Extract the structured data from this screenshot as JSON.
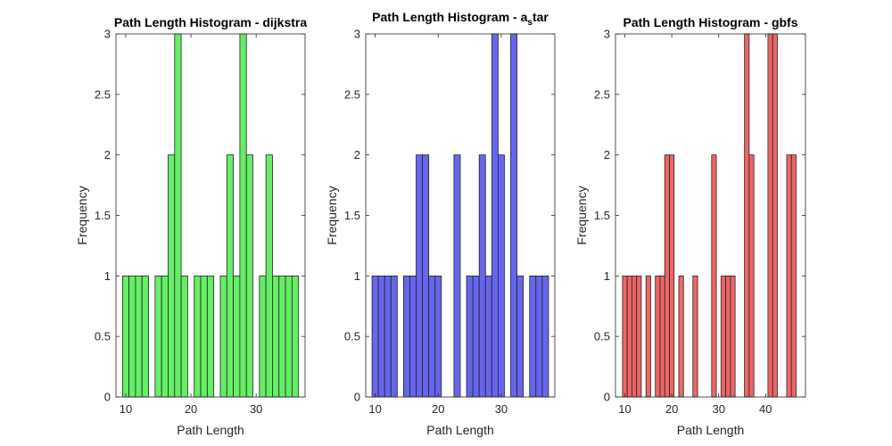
{
  "figure": {
    "background": "#ffffff"
  },
  "chart_data": [
    {
      "type": "bar",
      "title": "Path Length Histogram - dijkstra",
      "title_parts": [],
      "xlabel": "Path Length",
      "ylabel": "Frequency",
      "xlim": [
        8.5,
        37.5
      ],
      "ylim": [
        0,
        3
      ],
      "xticks": [
        10,
        20,
        30
      ],
      "yticks": [
        0,
        0.5,
        1,
        1.5,
        2,
        2.5,
        3
      ],
      "ytick_labels": [
        "0",
        "0.5",
        "1",
        "1.5",
        "2",
        "2.5",
        "3"
      ],
      "bin_width": 1,
      "color": "#66ee66",
      "bins": [
        {
          "x": 10,
          "value": 1
        },
        {
          "x": 11,
          "value": 1
        },
        {
          "x": 12,
          "value": 1
        },
        {
          "x": 13,
          "value": 1
        },
        {
          "x": 15,
          "value": 1
        },
        {
          "x": 16,
          "value": 1
        },
        {
          "x": 17,
          "value": 2
        },
        {
          "x": 18,
          "value": 3
        },
        {
          "x": 19,
          "value": 1
        },
        {
          "x": 21,
          "value": 1
        },
        {
          "x": 22,
          "value": 1
        },
        {
          "x": 23,
          "value": 1
        },
        {
          "x": 25,
          "value": 1
        },
        {
          "x": 26,
          "value": 2
        },
        {
          "x": 27,
          "value": 1
        },
        {
          "x": 28,
          "value": 3
        },
        {
          "x": 29,
          "value": 2
        },
        {
          "x": 31,
          "value": 1
        },
        {
          "x": 32,
          "value": 2
        },
        {
          "x": 33,
          "value": 1
        },
        {
          "x": 34,
          "value": 1
        },
        {
          "x": 35,
          "value": 1
        },
        {
          "x": 36,
          "value": 1
        }
      ]
    },
    {
      "type": "bar",
      "title": "",
      "title_parts": [
        "Path Length Histogram - a",
        "s",
        "tar"
      ],
      "xlabel": "Path Length",
      "ylabel": "Frequency",
      "xlim": [
        8.5,
        38.5
      ],
      "ylim": [
        0,
        3
      ],
      "xticks": [
        10,
        20,
        30
      ],
      "yticks": [
        0,
        0.5,
        1,
        1.5,
        2,
        2.5,
        3
      ],
      "ytick_labels": [
        "0",
        "0.5",
        "1",
        "1.5",
        "2",
        "2.5",
        "3"
      ],
      "bin_width": 1,
      "color": "#6666ee",
      "bins": [
        {
          "x": 10,
          "value": 1
        },
        {
          "x": 11,
          "value": 1
        },
        {
          "x": 12,
          "value": 1
        },
        {
          "x": 13,
          "value": 1
        },
        {
          "x": 15,
          "value": 1
        },
        {
          "x": 16,
          "value": 1
        },
        {
          "x": 17,
          "value": 2
        },
        {
          "x": 18,
          "value": 2
        },
        {
          "x": 19,
          "value": 1
        },
        {
          "x": 20,
          "value": 1
        },
        {
          "x": 23,
          "value": 2
        },
        {
          "x": 25,
          "value": 1
        },
        {
          "x": 26,
          "value": 1
        },
        {
          "x": 27,
          "value": 2
        },
        {
          "x": 28,
          "value": 1
        },
        {
          "x": 29,
          "value": 3
        },
        {
          "x": 30,
          "value": 2
        },
        {
          "x": 32,
          "value": 3
        },
        {
          "x": 33,
          "value": 1
        },
        {
          "x": 35,
          "value": 1
        },
        {
          "x": 36,
          "value": 1
        },
        {
          "x": 37,
          "value": 1
        }
      ]
    },
    {
      "type": "bar",
      "title": "Path Length Histogram - gbfs",
      "title_parts": [],
      "xlabel": "Path Length",
      "ylabel": "Frequency",
      "xlim": [
        8,
        48.5
      ],
      "ylim": [
        0,
        3
      ],
      "xticks": [
        10,
        20,
        30,
        40
      ],
      "yticks": [
        0,
        0.5,
        1,
        1.5,
        2,
        2.5,
        3
      ],
      "ytick_labels": [
        "0",
        "0.5",
        "1",
        "1.5",
        "2",
        "2.5",
        "3"
      ],
      "bin_width": 1,
      "color": "#ee6666",
      "bins": [
        {
          "x": 10,
          "value": 1
        },
        {
          "x": 11,
          "value": 1
        },
        {
          "x": 12,
          "value": 1
        },
        {
          "x": 13,
          "value": 1
        },
        {
          "x": 15,
          "value": 1
        },
        {
          "x": 17,
          "value": 1
        },
        {
          "x": 18,
          "value": 1
        },
        {
          "x": 19,
          "value": 2
        },
        {
          "x": 20,
          "value": 2
        },
        {
          "x": 22,
          "value": 1
        },
        {
          "x": 25,
          "value": 1
        },
        {
          "x": 29,
          "value": 2
        },
        {
          "x": 31,
          "value": 1
        },
        {
          "x": 32,
          "value": 1
        },
        {
          "x": 33,
          "value": 1
        },
        {
          "x": 36,
          "value": 3
        },
        {
          "x": 37,
          "value": 2
        },
        {
          "x": 41,
          "value": 3
        },
        {
          "x": 42,
          "value": 3
        },
        {
          "x": 45,
          "value": 2
        },
        {
          "x": 46,
          "value": 2
        }
      ]
    }
  ]
}
